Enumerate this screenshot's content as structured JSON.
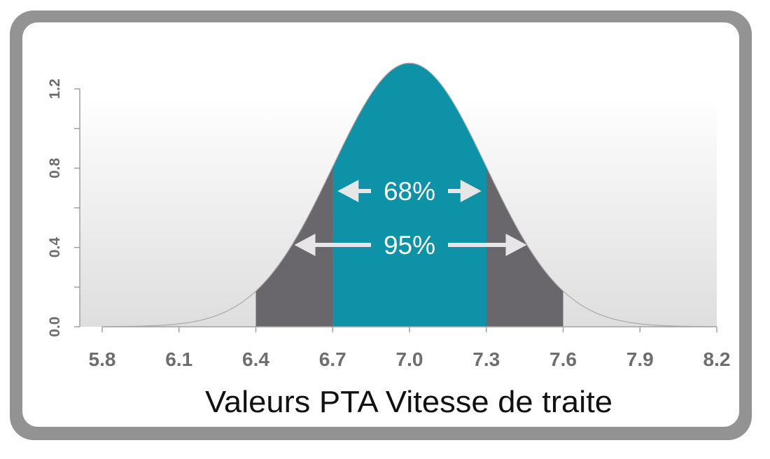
{
  "colors": {
    "frame": "#939393",
    "inner_band": "#0e92a7",
    "outer_band": "#69676b",
    "curve_line": "#a8a8a8",
    "axis": "#a0a0a0",
    "tick_text": "#6e6e70",
    "arrow": "#e6e6e6"
  },
  "chart_data": {
    "type": "area",
    "distribution": "normal",
    "mean": 7.0,
    "sd": 0.3,
    "xlabel": "Valeurs PTA Vitesse de traite",
    "ylabel": "",
    "xlim": [
      5.8,
      8.2
    ],
    "ylim": [
      0.0,
      1.2
    ],
    "x_ticks": [
      "5.8",
      "6.1",
      "6.4",
      "6.7",
      "7.0",
      "7.3",
      "7.6",
      "7.9",
      "8.2"
    ],
    "y_ticks": [
      "0.0",
      "0.4",
      "0.8",
      "1.2"
    ],
    "bands": [
      {
        "label": "95%",
        "from": 6.4,
        "to": 7.6
      },
      {
        "label": "68%",
        "from": 6.7,
        "to": 7.3
      }
    ],
    "grid": false
  }
}
